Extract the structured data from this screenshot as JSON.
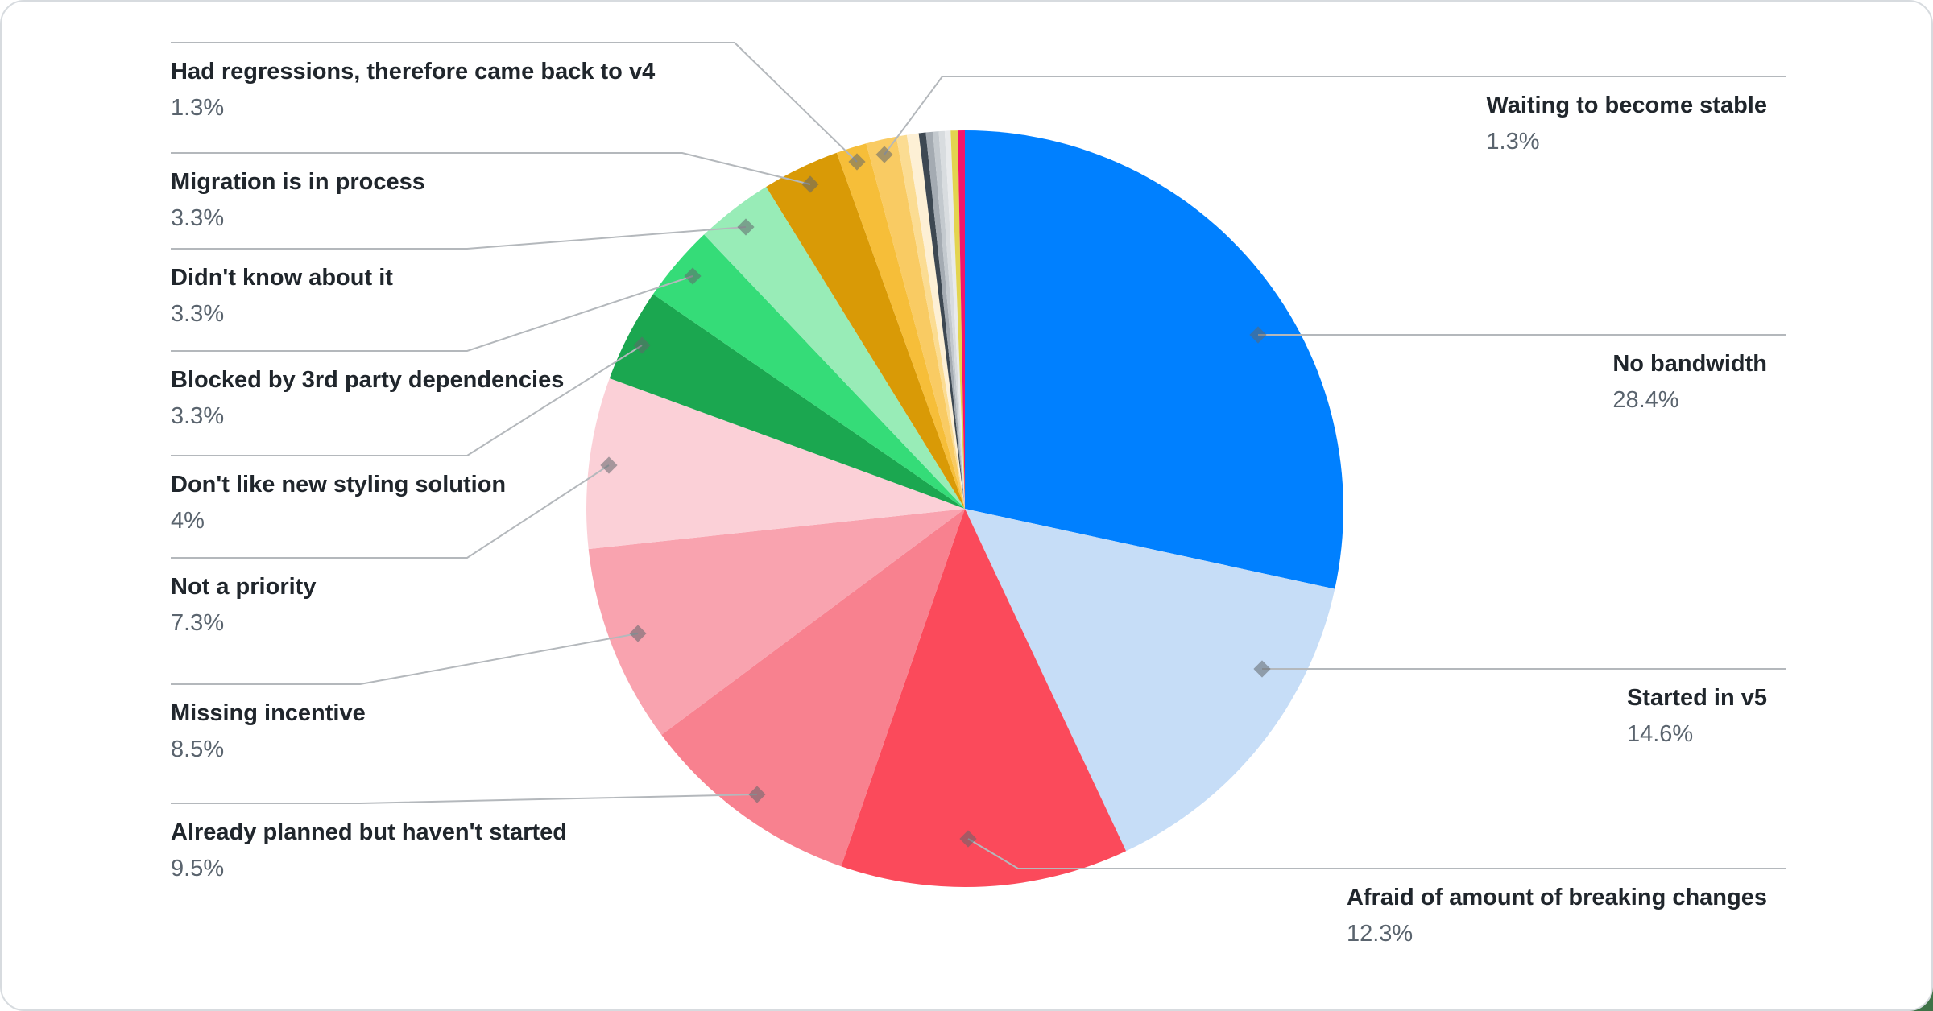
{
  "frame": {
    "outer_corner_color": "#3E7347",
    "card_background": "#FFFFFF",
    "card_border_color": "#D7DBDF"
  },
  "chart_data": {
    "type": "pie",
    "title": "",
    "direction": "clockwise",
    "start_angle_deg": 0,
    "unit": "%",
    "legend_position": "callout-labels",
    "slices": [
      {
        "id": "no-bandwidth",
        "label": "No bandwidth",
        "value": 28.4,
        "display": "28.4%",
        "color": "#0080FF",
        "labeled": true,
        "callout_side": "right"
      },
      {
        "id": "started-in-v5",
        "label": "Started in v5",
        "value": 14.6,
        "display": "14.6%",
        "color": "#C6DDF7",
        "labeled": true,
        "callout_side": "right"
      },
      {
        "id": "afraid-breaking-changes",
        "label": "Afraid of amount of breaking changes",
        "value": 12.3,
        "display": "12.3%",
        "color": "#FB4A5B",
        "labeled": true,
        "callout_side": "right"
      },
      {
        "id": "already-planned",
        "label": "Already planned but haven't started",
        "value": 9.5,
        "display": "9.5%",
        "color": "#F8818F",
        "labeled": true,
        "callout_side": "left"
      },
      {
        "id": "missing-incentive",
        "label": "Missing incentive",
        "value": 8.5,
        "display": "8.5%",
        "color": "#F9A3AF",
        "labeled": true,
        "callout_side": "left"
      },
      {
        "id": "not-a-priority",
        "label": "Not a priority",
        "value": 7.3,
        "display": "7.3%",
        "color": "#FBD0D7",
        "labeled": true,
        "callout_side": "left"
      },
      {
        "id": "dont-like-styling",
        "label": "Don't like new styling solution",
        "value": 4,
        "display": "4%",
        "color": "#1BA750",
        "labeled": true,
        "callout_side": "left"
      },
      {
        "id": "blocked-3rd-party",
        "label": "Blocked by 3rd party dependencies",
        "value": 3.3,
        "display": "3.3%",
        "color": "#35DC78",
        "labeled": true,
        "callout_side": "left"
      },
      {
        "id": "didnt-know",
        "label": "Didn't know about it",
        "value": 3.3,
        "display": "3.3%",
        "color": "#98ECB7",
        "labeled": true,
        "callout_side": "left"
      },
      {
        "id": "migration-in-process",
        "label": "Migration is in process",
        "value": 3.3,
        "display": "3.3%",
        "color": "#D99A06",
        "labeled": true,
        "callout_side": "left"
      },
      {
        "id": "had-regressions",
        "label": "Had regressions, therefore came back to v4",
        "value": 1.3,
        "display": "1.3%",
        "color": "#F6BE39",
        "labeled": true,
        "callout_side": "left"
      },
      {
        "id": "waiting-stable",
        "label": "Waiting to become stable",
        "value": 1.3,
        "display": "1.3%",
        "color": "#F9CB63",
        "labeled": true,
        "callout_side": "right"
      },
      {
        "id": "other-1",
        "label": "",
        "value": 0.45,
        "display": "",
        "color": "#FBDC92",
        "labeled": false
      },
      {
        "id": "other-2",
        "label": "",
        "value": 0.5,
        "display": "",
        "color": "#FDF0D5",
        "labeled": false
      },
      {
        "id": "other-3",
        "label": "",
        "value": 0.3,
        "display": "",
        "color": "#3D4852",
        "labeled": false
      },
      {
        "id": "other-4",
        "label": "",
        "value": 0.3,
        "display": "",
        "color": "#A4ABB2",
        "labeled": false
      },
      {
        "id": "other-5",
        "label": "",
        "value": 0.25,
        "display": "",
        "color": "#C3C9CE",
        "labeled": false
      },
      {
        "id": "other-6",
        "label": "",
        "value": 0.25,
        "display": "",
        "color": "#D8DCDF",
        "labeled": false
      },
      {
        "id": "other-7",
        "label": "",
        "value": 0.25,
        "display": "",
        "color": "#E8EAEC",
        "labeled": false
      },
      {
        "id": "other-8",
        "label": "",
        "value": 0.3,
        "display": "",
        "color": "#E3D44F",
        "labeled": false
      },
      {
        "id": "other-9",
        "label": "",
        "value": 0.3,
        "display": "",
        "color": "#F4146B",
        "labeled": false
      }
    ],
    "styles": {
      "leader_line_color": "#B4B8BC",
      "diamond_marker_color": "#60666C",
      "label_text_color": "#20262C",
      "percent_text_color": "#5A646E"
    }
  }
}
